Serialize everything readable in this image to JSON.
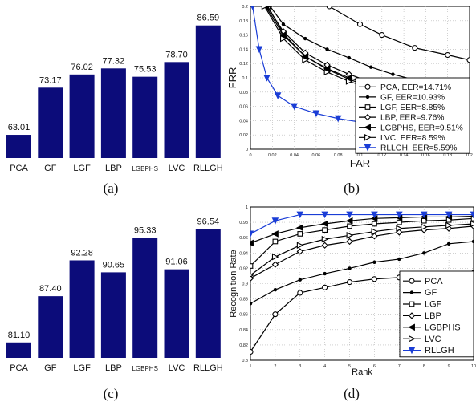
{
  "captions": [
    "(a)",
    "(b)",
    "(c)",
    "(d)"
  ],
  "colors": {
    "bar": "#0c0c7a",
    "line": "#000000",
    "highlight": "#1a3dd6"
  },
  "chart_data": [
    {
      "type": "bar",
      "panel": "a",
      "categories": [
        "PCA",
        "GF",
        "LGF",
        "LBP",
        "LGBPHS",
        "LVC",
        "RLLGH"
      ],
      "values": [
        63.01,
        73.17,
        76.02,
        77.32,
        75.53,
        78.7,
        86.59
      ],
      "value_labels": [
        "63.01",
        "73.17",
        "76.02",
        "77.32",
        "75.53",
        "78.70",
        "86.59"
      ],
      "ylim": [
        58,
        90
      ],
      "xlabel": "",
      "ylabel": ""
    },
    {
      "type": "line",
      "panel": "b",
      "xlabel": "FAR",
      "ylabel": "FRR",
      "xlim": [
        0,
        0.2
      ],
      "ylim": [
        0,
        0.2
      ],
      "xticks": [
        "0",
        "0.02",
        "0.04",
        "0.06",
        "0.08",
        "0.1",
        "0.12",
        "0.14",
        "0.16",
        "0.18",
        "0.2"
      ],
      "yticks": [
        "0",
        "0.02",
        "0.04",
        "0.06",
        "0.08",
        "0.1",
        "0.12",
        "0.14",
        "0.16",
        "0.18",
        "0.2"
      ],
      "legend_position": "bottom-right",
      "series": [
        {
          "name": "PCA, EER=14.71%",
          "marker": "circle",
          "color": "#000000",
          "x": [
            0.072,
            0.1,
            0.12,
            0.15,
            0.18,
            0.2
          ],
          "y": [
            0.2,
            0.175,
            0.16,
            0.142,
            0.132,
            0.125
          ]
        },
        {
          "name": "GF, EER=10.93%",
          "marker": "dot",
          "color": "#000000",
          "x": [
            0.018,
            0.03,
            0.05,
            0.07,
            0.09,
            0.11,
            0.13,
            0.15
          ],
          "y": [
            0.2,
            0.175,
            0.155,
            0.14,
            0.128,
            0.115,
            0.105,
            0.097
          ]
        },
        {
          "name": "LGF, EER=8.85%",
          "marker": "square",
          "color": "#000000",
          "x": [
            0.016,
            0.03,
            0.05,
            0.07,
            0.09,
            0.11,
            0.13
          ],
          "y": [
            0.2,
            0.162,
            0.13,
            0.112,
            0.098,
            0.087,
            0.078
          ]
        },
        {
          "name": "LBP, EER=9.76%",
          "marker": "diamond",
          "color": "#000000",
          "x": [
            0.015,
            0.03,
            0.05,
            0.07,
            0.09,
            0.11,
            0.13
          ],
          "y": [
            0.2,
            0.165,
            0.135,
            0.118,
            0.105,
            0.094,
            0.085
          ]
        },
        {
          "name": "LGBPHS, EER=9.51%",
          "marker": "triangle-left",
          "color": "#000000",
          "x": [
            0.014,
            0.03,
            0.05,
            0.07,
            0.09,
            0.11,
            0.13
          ],
          "y": [
            0.2,
            0.16,
            0.13,
            0.113,
            0.1,
            0.09,
            0.082
          ]
        },
        {
          "name": "LVC, EER=8.59%",
          "marker": "triangle-right",
          "color": "#000000",
          "x": [
            0.013,
            0.03,
            0.05,
            0.07,
            0.09,
            0.11,
            0.13
          ],
          "y": [
            0.2,
            0.155,
            0.125,
            0.108,
            0.095,
            0.085,
            0.077
          ]
        },
        {
          "name": "RLLGH, EER=5.59%",
          "marker": "triangle-down",
          "color": "#1a3dd6",
          "x": [
            0.002,
            0.008,
            0.015,
            0.025,
            0.04,
            0.06,
            0.08,
            0.1,
            0.12,
            0.14
          ],
          "y": [
            0.2,
            0.14,
            0.1,
            0.075,
            0.06,
            0.05,
            0.043,
            0.038,
            0.034,
            0.03
          ]
        }
      ]
    },
    {
      "type": "bar",
      "panel": "c",
      "categories": [
        "PCA",
        "GF",
        "LGF",
        "LBP",
        "LGBPHS",
        "LVC",
        "RLLGH"
      ],
      "values": [
        81.1,
        87.4,
        92.28,
        90.65,
        95.33,
        91.06,
        96.54
      ],
      "value_labels": [
        "81.10",
        "87.40",
        "92.28",
        "90.65",
        "95.33",
        "91.06",
        "96.54"
      ],
      "ylim": [
        79,
        99
      ],
      "xlabel": "",
      "ylabel": ""
    },
    {
      "type": "line",
      "panel": "d",
      "xlabel": "Rank",
      "ylabel": "Recognition Rate",
      "xlim": [
        1,
        10
      ],
      "ylim": [
        0.8,
        1.0
      ],
      "xticks": [
        "1",
        "2",
        "3",
        "4",
        "5",
        "6",
        "7",
        "8",
        "9",
        "10"
      ],
      "yticks": [
        "0.8",
        "0.82",
        "0.84",
        "0.86",
        "0.88",
        "0.9",
        "0.92",
        "0.94",
        "0.96",
        "0.98",
        "1"
      ],
      "legend_position": "bottom-right",
      "series": [
        {
          "name": "PCA",
          "marker": "circle",
          "color": "#000000",
          "x": [
            1,
            2,
            3,
            4,
            5,
            6,
            7,
            8,
            9,
            10
          ],
          "y": [
            0.811,
            0.86,
            0.888,
            0.895,
            0.902,
            0.906,
            0.908,
            0.908,
            0.912,
            0.914
          ]
        },
        {
          "name": "GF",
          "marker": "dot",
          "color": "#000000",
          "x": [
            1,
            2,
            3,
            4,
            5,
            6,
            7,
            8,
            9,
            10
          ],
          "y": [
            0.874,
            0.892,
            0.905,
            0.913,
            0.92,
            0.928,
            0.932,
            0.94,
            0.952,
            0.955
          ]
        },
        {
          "name": "LGF",
          "marker": "square",
          "color": "#000000",
          "x": [
            1,
            2,
            3,
            4,
            5,
            6,
            7,
            8,
            9,
            10
          ],
          "y": [
            0.923,
            0.955,
            0.965,
            0.97,
            0.975,
            0.978,
            0.98,
            0.982,
            0.983,
            0.985
          ]
        },
        {
          "name": "LBP",
          "marker": "diamond",
          "color": "#000000",
          "x": [
            1,
            2,
            3,
            4,
            5,
            6,
            7,
            8,
            9,
            10
          ],
          "y": [
            0.907,
            0.925,
            0.942,
            0.95,
            0.955,
            0.962,
            0.967,
            0.97,
            0.972,
            0.975
          ]
        },
        {
          "name": "LGBPHS",
          "marker": "triangle-left",
          "color": "#000000",
          "x": [
            1,
            2,
            3,
            4,
            5,
            6,
            7,
            8,
            9,
            10
          ],
          "y": [
            0.953,
            0.965,
            0.973,
            0.978,
            0.982,
            0.985,
            0.986,
            0.987,
            0.987,
            0.988
          ]
        },
        {
          "name": "LVC",
          "marker": "triangle-right",
          "color": "#000000",
          "x": [
            1,
            2,
            3,
            4,
            5,
            6,
            7,
            8,
            9,
            10
          ],
          "y": [
            0.911,
            0.935,
            0.95,
            0.958,
            0.963,
            0.968,
            0.972,
            0.974,
            0.976,
            0.978
          ]
        },
        {
          "name": "RLLGH",
          "marker": "triangle-down",
          "color": "#1a3dd6",
          "x": [
            1,
            2,
            3,
            4,
            5,
            6,
            7,
            8,
            9,
            10
          ],
          "y": [
            0.965,
            0.982,
            0.99,
            0.99,
            0.99,
            0.99,
            0.99,
            0.99,
            0.99,
            0.99
          ]
        }
      ]
    }
  ]
}
